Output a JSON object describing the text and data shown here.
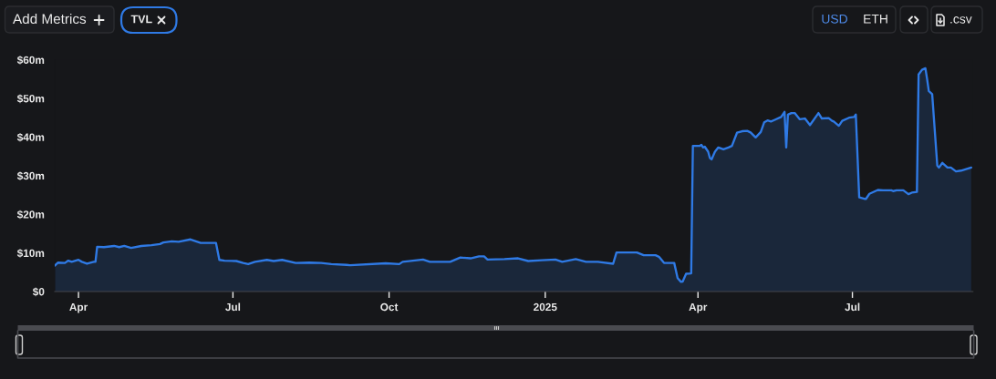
{
  "chart_data": {
    "type": "area",
    "series": [
      {
        "color": "#2f7ae5",
        "x": [
          "2024-03-18",
          "2024-03-20",
          "2024-03-24",
          "2024-03-26",
          "2024-03-28",
          "2024-04-01",
          "2024-04-03",
          "2024-04-06",
          "2024-04-10",
          "2024-04-11",
          "2024-04-12",
          "2024-04-16",
          "2024-04-22",
          "2024-04-25",
          "2024-04-28",
          "2024-05-02",
          "2024-05-08",
          "2024-05-14",
          "2024-05-19",
          "2024-05-21",
          "2024-05-26",
          "2024-05-30",
          "2024-06-06",
          "2024-06-12",
          "2024-06-20",
          "2024-06-21",
          "2024-06-23",
          "2024-06-26",
          "2024-07-03",
          "2024-07-07",
          "2024-07-10",
          "2024-07-14",
          "2024-07-21",
          "2024-07-25",
          "2024-07-30",
          "2024-08-07",
          "2024-08-15",
          "2024-08-22",
          "2024-08-28",
          "2024-09-06",
          "2024-09-08",
          "2024-09-29",
          "2024-10-07",
          "2024-10-09",
          "2024-10-21",
          "2024-10-25",
          "2024-11-06",
          "2024-11-12",
          "2024-11-18",
          "2024-11-23",
          "2024-11-26",
          "2024-11-28",
          "2024-12-08",
          "2024-12-16",
          "2024-12-22",
          "2024-12-30",
          "2025-01-07",
          "2025-01-11",
          "2025-01-19",
          "2025-01-25",
          "2025-02-01",
          "2025-02-10",
          "2025-02-12",
          "2025-02-24",
          "2025-02-28",
          "2025-03-07",
          "2025-03-09",
          "2025-03-12",
          "2025-03-18",
          "2025-03-20",
          "2025-03-22",
          "2025-03-23",
          "2025-03-25",
          "2025-03-28",
          "2025-03-29",
          "2025-04-02",
          "2025-04-03",
          "2025-04-04",
          "2025-04-05",
          "2025-04-07",
          "2025-04-08",
          "2025-04-09",
          "2025-04-11",
          "2025-04-13",
          "2025-04-16",
          "2025-04-19",
          "2025-04-21",
          "2025-04-24",
          "2025-04-27",
          "2025-04-30",
          "2025-05-02",
          "2025-05-05",
          "2025-05-08",
          "2025-05-10",
          "2025-05-12",
          "2025-05-14",
          "2025-05-16",
          "2025-05-20",
          "2025-05-22",
          "2025-05-23",
          "2025-05-24",
          "2025-05-26",
          "2025-05-28",
          "2025-05-31",
          "2025-06-03",
          "2025-06-06",
          "2025-06-11",
          "2025-06-13",
          "2025-06-17",
          "2025-06-19",
          "2025-06-20",
          "2025-06-23",
          "2025-06-25",
          "2025-06-29",
          "2025-07-02",
          "2025-07-03",
          "2025-07-05",
          "2025-07-08",
          "2025-07-09",
          "2025-07-11",
          "2025-07-16",
          "2025-07-19",
          "2025-07-24",
          "2025-07-25",
          "2025-07-27",
          "2025-07-31",
          "2025-08-03",
          "2025-08-05",
          "2025-08-08",
          "2025-08-09",
          "2025-08-11",
          "2025-08-13",
          "2025-08-14",
          "2025-08-15",
          "2025-08-17",
          "2025-08-20",
          "2025-08-21",
          "2025-08-23",
          "2025-08-26",
          "2025-08-28",
          "2025-08-31",
          "2025-09-03",
          "2025-09-06",
          "2025-09-09"
        ],
        "values": [
          6.7,
          7.5,
          7.4,
          8.0,
          7.7,
          8.2,
          7.7,
          7.2,
          7.7,
          7.7,
          11.6,
          11.5,
          11.8,
          11.5,
          11.8,
          11.3,
          11.8,
          12.0,
          12.3,
          12.7,
          13.0,
          12.9,
          13.5,
          12.6,
          12.6,
          12.6,
          8.2,
          8.0,
          7.9,
          7.4,
          7.1,
          7.7,
          8.2,
          7.9,
          8.2,
          7.4,
          7.5,
          7.4,
          7.1,
          6.9,
          6.8,
          7.3,
          7.1,
          7.7,
          8.3,
          7.7,
          7.7,
          8.8,
          8.6,
          9.1,
          9.1,
          8.3,
          8.4,
          8.6,
          7.9,
          8.1,
          8.3,
          7.7,
          8.4,
          7.7,
          7.7,
          7.2,
          10.1,
          10.1,
          9.4,
          9.4,
          9.0,
          7.4,
          7.4,
          3.5,
          2.5,
          2.6,
          4.6,
          4.7,
          37.7,
          37.7,
          38.0,
          37.3,
          37.5,
          36.2,
          34.6,
          34.2,
          36.2,
          37.3,
          36.8,
          37.3,
          37.7,
          41.1,
          41.5,
          41.6,
          41.2,
          39.9,
          41.3,
          43.8,
          44.3,
          44.0,
          44.4,
          45.2,
          46.5,
          37.3,
          45.8,
          46.2,
          46.2,
          44.6,
          44.8,
          43.1,
          46.2,
          44.8,
          44.9,
          44.2,
          44.0,
          42.9,
          44.2,
          45.0,
          45.2,
          45.8,
          24.4,
          24.0,
          24.0,
          25.3,
          26.3,
          26.2,
          26.2,
          26.0,
          26.2,
          26.2,
          25.2,
          25.6,
          25.8,
          56.2,
          57.4,
          57.8,
          55.0,
          51.9,
          51.1,
          32.6,
          32.1,
          33.3,
          32.1,
          32.1,
          31.1,
          31.3,
          31.7,
          32.1
        ]
      }
    ],
    "xlim": [
      "2024-03-18",
      "2025-09-10"
    ],
    "xticks": [
      {
        "value": "2024-04-01",
        "label": "Apr"
      },
      {
        "value": "2024-07-01",
        "label": "Jul"
      },
      {
        "value": "2024-10-01",
        "label": "Oct"
      },
      {
        "value": "2025-01-01",
        "label": "2025"
      },
      {
        "value": "2025-04-01",
        "label": "Apr"
      },
      {
        "value": "2025-07-01",
        "label": "Jul"
      }
    ],
    "ylim": [
      0,
      60
    ],
    "yticks": [
      {
        "value": 0,
        "label": "$0"
      },
      {
        "value": 10,
        "label": "$10m"
      },
      {
        "value": 20,
        "label": "$20m"
      },
      {
        "value": 30,
        "label": "$30m"
      },
      {
        "value": 40,
        "label": "$40m"
      },
      {
        "value": 50,
        "label": "$50m"
      },
      {
        "value": 60,
        "label": "$60m"
      }
    ],
    "grid": false,
    "annotations": [
      "Add Metrics",
      "TVL",
      "USD",
      "ETH",
      ".csv"
    ]
  }
}
